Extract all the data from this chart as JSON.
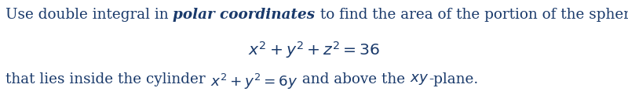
{
  "text_color": "#1a3a6b",
  "bg_color": "#ffffff",
  "fontsize": 13.2,
  "fig_width": 8.0,
  "fig_height": 1.31,
  "dpi": 100,
  "line1_parts": [
    {
      "text": "Use double integral in ",
      "bold": false,
      "italic": false,
      "math": false
    },
    {
      "text": "polar coordinates",
      "bold": true,
      "italic": true,
      "math": false
    },
    {
      "text": " to find the area of the portion of the sphere",
      "bold": false,
      "italic": false,
      "math": false
    }
  ],
  "line2": "x^2 + y^2 + z^2 = 36",
  "line3_parts": [
    {
      "text": "that lies inside the cylinder ",
      "bold": false,
      "italic": false,
      "math": false
    },
    {
      "text": "x^2 + y^2 = 6y",
      "bold": false,
      "italic": false,
      "math": true
    },
    {
      "text": " and above the ",
      "bold": false,
      "italic": false,
      "math": false
    },
    {
      "text": "xy",
      "bold": false,
      "italic": false,
      "math": true
    },
    {
      "text": "-plane.",
      "bold": false,
      "italic": false,
      "math": false
    }
  ]
}
